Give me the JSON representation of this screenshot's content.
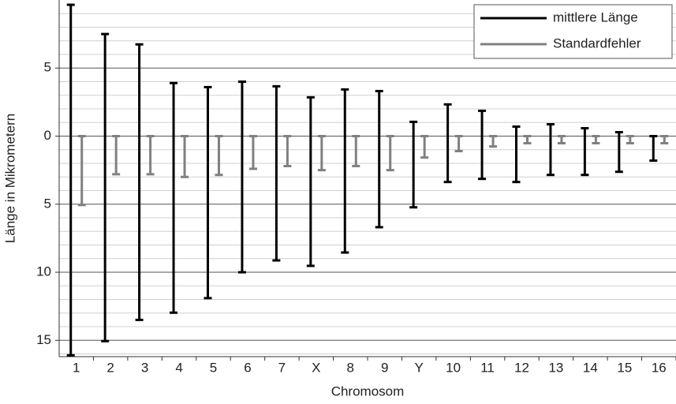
{
  "chart_data": {
    "type": "range",
    "y_label": "Länge in Mikrometern",
    "x_label": "Chromosom",
    "categories": [
      "1",
      "2",
      "3",
      "4",
      "5",
      "6",
      "7",
      "X",
      "8",
      "9",
      "Y",
      "10",
      "11",
      "12",
      "13",
      "14",
      "15",
      "16"
    ],
    "series": [
      {
        "name": "mittlere Länge",
        "color": "#000000",
        "upper": [
          9.65,
          7.5,
          6.74,
          3.9,
          3.6,
          4.0,
          3.66,
          2.85,
          3.43,
          3.31,
          1.05,
          2.33,
          1.86,
          0.7,
          0.87,
          0.58,
          0.29,
          0
        ],
        "lower": [
          -16.1,
          -15.06,
          -13.5,
          -12.97,
          -11.9,
          -10.0,
          -9.13,
          -9.53,
          -8.55,
          -6.69,
          -5.23,
          -3.37,
          -3.14,
          -3.37,
          -2.85,
          -2.85,
          -2.62,
          -1.8
        ]
      },
      {
        "name": "Standardfehler",
        "color": "#808080",
        "upper": [
          0,
          0,
          0,
          0,
          0,
          0,
          0,
          0,
          0,
          0,
          0,
          0,
          0,
          0,
          0,
          0,
          0,
          0
        ],
        "lower": [
          -5.06,
          -2.8,
          -2.8,
          -3.0,
          -2.85,
          -2.4,
          -2.2,
          -2.5,
          -2.2,
          -2.5,
          -1.57,
          -1.1,
          -0.76,
          -0.52,
          -0.52,
          -0.52,
          -0.52,
          -0.52
        ]
      }
    ],
    "ylim": [
      -16.2,
      10
    ],
    "yticks": [
      {
        "value": -15,
        "label": "15"
      },
      {
        "value": -10,
        "label": "10"
      },
      {
        "value": -5,
        "label": "5"
      },
      0,
      5
    ],
    "minor_yticks": [
      -16,
      -14,
      -13,
      -12,
      -11,
      -9,
      -8,
      -7,
      -6,
      -4,
      -3,
      -2,
      -1,
      1,
      2,
      3,
      4,
      6,
      7,
      8,
      9
    ],
    "grid": true,
    "legend": "top-right"
  }
}
